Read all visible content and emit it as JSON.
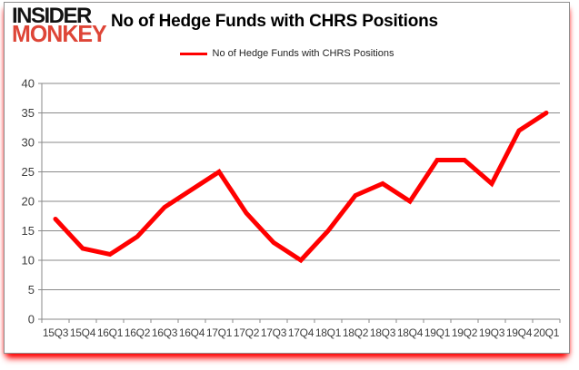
{
  "logo": {
    "line1": "INSIDER",
    "line2": "MONKEY",
    "color_line1": "#131313",
    "color_line2": "#de4537"
  },
  "header": {
    "title": "No of Hedge Funds with CHRS Positions"
  },
  "legend": {
    "label": "No of Hedge Funds with CHRS Positions",
    "swatch_color": "#ff0000"
  },
  "chart_data": {
    "type": "line",
    "title": "No of Hedge Funds with CHRS Positions",
    "categories": [
      "15Q3",
      "15Q4",
      "16Q1",
      "16Q2",
      "16Q3",
      "16Q4",
      "17Q1",
      "17Q2",
      "17Q3",
      "17Q4",
      "18Q1",
      "18Q2",
      "18Q3",
      "18Q4",
      "19Q1",
      "19Q2",
      "19Q3",
      "19Q4",
      "20Q1"
    ],
    "series": [
      {
        "name": "No of Hedge Funds with CHRS Positions",
        "color": "#ff0000",
        "values": [
          17,
          12,
          11,
          14,
          19,
          22,
          25,
          18,
          13,
          10,
          15,
          21,
          23,
          20,
          27,
          27,
          23,
          32,
          35
        ]
      }
    ],
    "xlabel": "",
    "ylabel": "",
    "ylim": [
      0,
      40
    ],
    "y_ticks": [
      0,
      5,
      10,
      15,
      20,
      25,
      30,
      35,
      40
    ],
    "grid": true,
    "gridline_color": "#8a8a8a",
    "axis_color": "#8a8a8a",
    "tick_label_color": "#3d3d3d",
    "legend_position": "top-center"
  }
}
